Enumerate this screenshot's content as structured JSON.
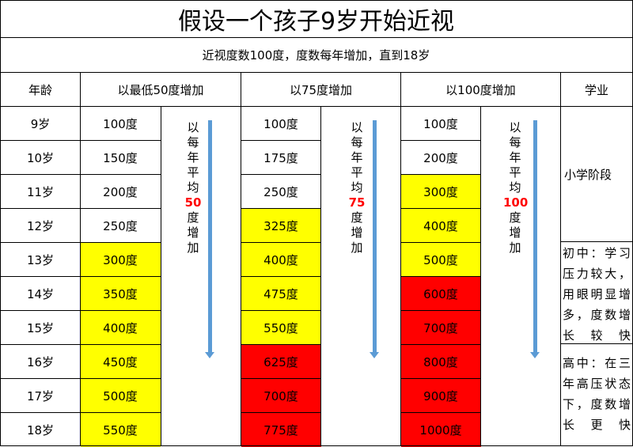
{
  "title": "假设一个孩子9岁开始近视",
  "subtitle": "近视度数100度，度数每年增加，直到18岁",
  "headers": {
    "age": "年龄",
    "col50": "以最低50度增加",
    "col75": "以75度增加",
    "col100": "以100度增加",
    "study": "学业"
  },
  "rows": [
    {
      "age": "9岁",
      "d50": "100度",
      "d75": "100度",
      "d100": "100度"
    },
    {
      "age": "10岁",
      "d50": "150度",
      "d75": "175度",
      "d100": "200度"
    },
    {
      "age": "11岁",
      "d50": "200度",
      "d75": "250度",
      "d100": "300度"
    },
    {
      "age": "12岁",
      "d50": "250度",
      "d75": "325度",
      "d100": "400度"
    },
    {
      "age": "13岁",
      "d50": "300度",
      "d75": "400度",
      "d100": "500度"
    },
    {
      "age": "14岁",
      "d50": "350度",
      "d75": "475度",
      "d100": "600度"
    },
    {
      "age": "15岁",
      "d50": "400度",
      "d75": "550度",
      "d100": "700度"
    },
    {
      "age": "16岁",
      "d50": "450度",
      "d75": "625度",
      "d100": "800度"
    },
    {
      "age": "17岁",
      "d50": "500度",
      "d75": "700度",
      "d100": "900度"
    },
    {
      "age": "18岁",
      "d50": "550度",
      "d75": "775度",
      "d100": "1000度"
    }
  ],
  "arrows": {
    "a50": {
      "chars": [
        "以",
        "每",
        "年",
        "平",
        "均"
      ],
      "num": "50",
      "tail": [
        "度",
        "增",
        "加"
      ]
    },
    "a75": {
      "chars": [
        "以",
        "每",
        "年",
        "平",
        "均"
      ],
      "num": "75",
      "tail": [
        "度",
        "增",
        "加"
      ]
    },
    "a100": {
      "chars": [
        "以",
        "每",
        "年",
        "平",
        "均"
      ],
      "num": "100",
      "tail": [
        "度",
        "增",
        "加"
      ]
    }
  },
  "stages": {
    "primary": "小学阶段",
    "junior": "初中：学习压力较大，用眼明显增多，度数增长较快",
    "senior": "高中：在三年高压状态下，度数增长更快"
  },
  "colors": {
    "yellow": "#ffff00",
    "red": "#ff0000",
    "arrow": "#5b9bd5"
  }
}
